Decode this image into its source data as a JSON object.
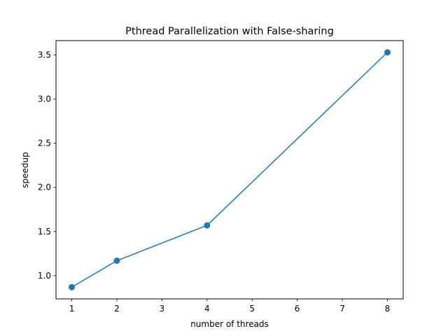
{
  "chart_data": {
    "type": "line",
    "title": "Pthread Parallelization with False-sharing",
    "xlabel": "number of threads",
    "ylabel": "speedup",
    "xlim": [
      0.65,
      8.35
    ],
    "ylim": [
      0.737,
      3.663
    ],
    "xticks": [
      1,
      2,
      3,
      4,
      5,
      6,
      7,
      8
    ],
    "xtick_labels": [
      "1",
      "2",
      "3",
      "4",
      "5",
      "6",
      "7",
      "8"
    ],
    "yticks": [
      1.0,
      1.5,
      2.0,
      2.5,
      3.0,
      3.5
    ],
    "ytick_labels": [
      "1.0",
      "1.5",
      "2.0",
      "2.5",
      "3.0",
      "3.5"
    ],
    "grid": false,
    "series": [
      {
        "x": [
          1,
          2,
          4,
          8
        ],
        "y": [
          0.87,
          1.17,
          1.57,
          3.53
        ],
        "color": "#1f77b4",
        "marker": "circle"
      }
    ]
  }
}
